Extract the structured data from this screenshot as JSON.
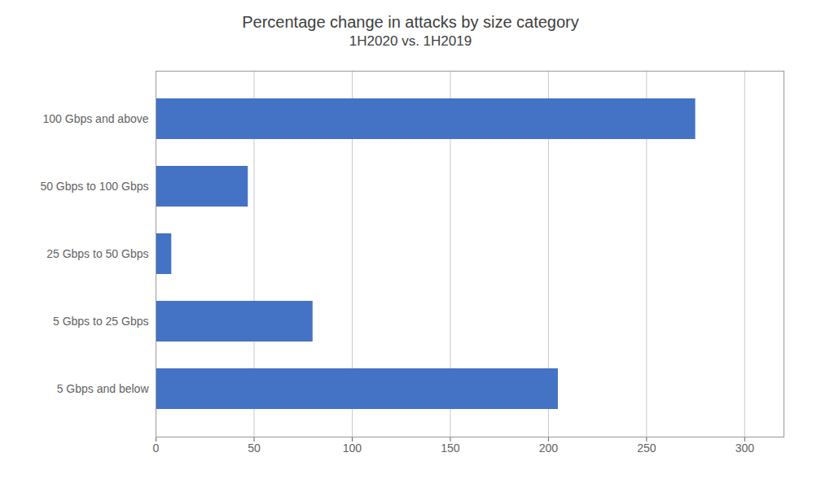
{
  "chart_data": {
    "type": "bar",
    "orientation": "horizontal",
    "title": "Percentage change in attacks by size category",
    "subtitle": "1H2020 vs. 1H2019",
    "categories": [
      "5 Gbps and below",
      "5 Gbps to 25 Gbps",
      "25 Gbps to 50 Gbps",
      "50 Gbps to 100 Gbps",
      "100 Gbps and above"
    ],
    "values": [
      205,
      80,
      8,
      47,
      275
    ],
    "color": "#4472C4",
    "xlim": [
      0,
      320
    ],
    "xticks": [
      0,
      50,
      100,
      150,
      200,
      250,
      300
    ],
    "grid": true
  }
}
